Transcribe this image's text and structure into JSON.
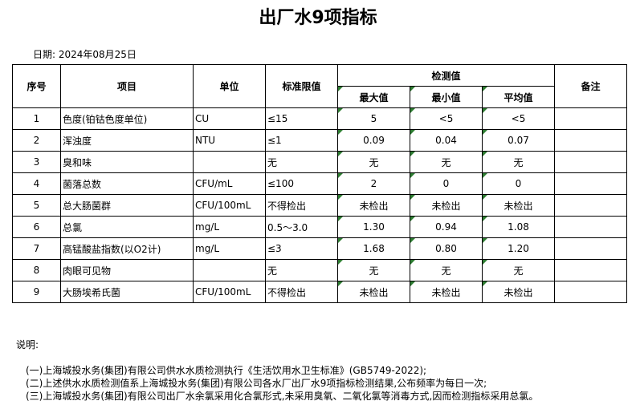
{
  "title": "出厂水9项指标",
  "date": "日期: 2024年08月25日",
  "headers": {
    "no": "序号",
    "item": "项目",
    "unit": "单位",
    "limit": "标准限值",
    "measured": "检测值",
    "max": "最大值",
    "min": "最小值",
    "avg": "平均值",
    "remark": "备注"
  },
  "rows": [
    {
      "no": "1",
      "item": "色度(铂钴色度单位)",
      "unit": "CU",
      "limit": "≤15",
      "max": "5",
      "min": "<5",
      "avg": "<5"
    },
    {
      "no": "2",
      "item": "浑浊度",
      "unit": "NTU",
      "limit": "≤1",
      "max": "0.09",
      "min": "0.04",
      "avg": "0.07"
    },
    {
      "no": "3",
      "item": "臭和味",
      "unit": "",
      "limit": "无",
      "max": "无",
      "min": "无",
      "avg": "无"
    },
    {
      "no": "4",
      "item": "菌落总数",
      "unit": "CFU/mL",
      "limit": "≤100",
      "max": "2",
      "min": "0",
      "avg": "0"
    },
    {
      "no": "5",
      "item": "总大肠菌群",
      "unit": "CFU/100mL",
      "limit": "不得检出",
      "max": "未检出",
      "min": "未检出",
      "avg": "未检出"
    },
    {
      "no": "6",
      "item": "总氯",
      "unit": "mg/L",
      "limit": "0.5～3.0",
      "max": "1.30",
      "min": "0.94",
      "avg": "1.08"
    },
    {
      "no": "7",
      "item": "高锰酸盐指数(以O2计)",
      "unit": "mg/L",
      "limit": "≤3",
      "max": "1.68",
      "min": "0.80",
      "avg": "1.20"
    },
    {
      "no": "8",
      "item": "肉眼可见物",
      "unit": "",
      "limit": "无",
      "max": "无",
      "min": "无",
      "avg": "无"
    },
    {
      "no": "9",
      "item": "大肠埃希氏菌",
      "unit": "CFU/100mL",
      "limit": "不得检出",
      "max": "未检出",
      "min": "未检出",
      "avg": "未检出"
    }
  ],
  "notes": {
    "label": "说明:",
    "items": [
      "(一)上海城投水务(集团)有限公司供水水质检测执行《生活饮用水卫生标准》(GB5749-2022);",
      "(二)上述供水水质检测值系上海城投水务(集团)有限公司各水厂出厂水9项指标检测结果,公布频率为每日一次;",
      "(三)上海城投水务(集团)有限公司出厂水余氯采用化合氯形式,未采用臭氧、二氧化氯等消毒方式,因而检测指标采用总氯。"
    ]
  },
  "colors": {
    "indicator": "#2e7d32"
  }
}
